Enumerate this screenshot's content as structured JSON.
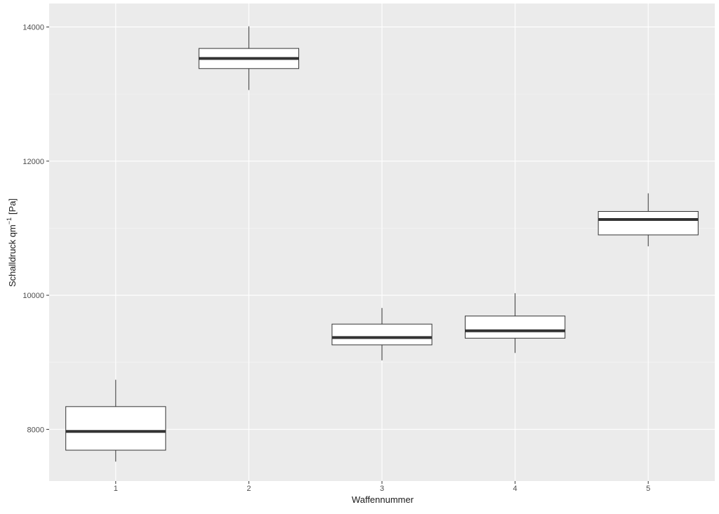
{
  "chart_data": {
    "type": "boxplot",
    "title": "",
    "xlabel": "Waffennummer",
    "ylabel": "Schalldruck qm",
    "ylabel_superscript": "−1",
    "ylabel_unit": "[Pa]",
    "categories": [
      "1",
      "2",
      "3",
      "4",
      "5"
    ],
    "y_ticks": [
      8000,
      10000,
      12000,
      14000
    ],
    "ylim": [
      7230,
      14350
    ],
    "grid": true,
    "legend": "none",
    "boxes": [
      {
        "category": "1",
        "whisker_low": 7520,
        "q1": 7690,
        "median": 7970,
        "q3": 8340,
        "whisker_high": 8740
      },
      {
        "category": "2",
        "whisker_low": 13060,
        "q1": 13380,
        "median": 13530,
        "q3": 13680,
        "whisker_high": 14010
      },
      {
        "category": "3",
        "whisker_low": 9030,
        "q1": 9260,
        "median": 9370,
        "q3": 9570,
        "whisker_high": 9810
      },
      {
        "category": "4",
        "whisker_low": 9140,
        "q1": 9360,
        "median": 9470,
        "q3": 9690,
        "whisker_high": 10030
      },
      {
        "category": "5",
        "whisker_low": 10730,
        "q1": 10900,
        "median": 11130,
        "q3": 11250,
        "whisker_high": 11520
      }
    ],
    "colors": {
      "panel_background": "#ebebeb",
      "grid_major": "#ffffff",
      "grid_minor": "#f5f5f5",
      "box_fill": "#ffffff",
      "box_stroke": "#333333",
      "median": "#333333"
    }
  }
}
